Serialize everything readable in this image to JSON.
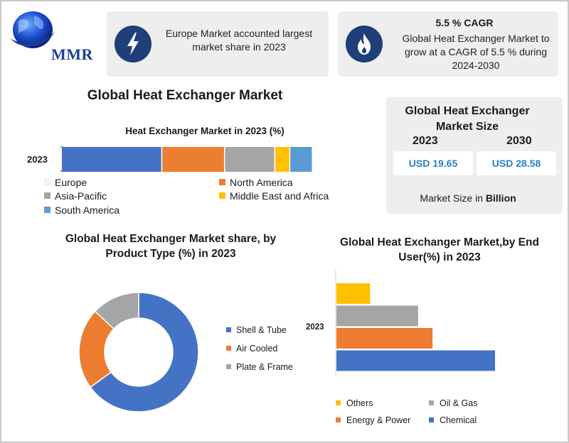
{
  "brand": {
    "logo_text": "MMR"
  },
  "info_cards": [
    {
      "icon": "lightning-bolt-icon",
      "text": "Europe Market accounted largest market share in 2023"
    },
    {
      "icon": "flame-icon",
      "title": "5.5 % CAGR",
      "text": "Global Heat Exchanger Market to grow at a CAGR of 5.5 % during 2024-2030"
    }
  ],
  "main_title": "Global Heat Exchanger Market",
  "market_size": {
    "title": "Global Heat Exchanger Market Size",
    "years": [
      "2023",
      "2030"
    ],
    "values": [
      "USD 19.65",
      "USD 28.58"
    ],
    "note_prefix": "Market Size in ",
    "note_unit": "Billion"
  },
  "colors": {
    "blue": "#4472c4",
    "orange": "#ed7d31",
    "gray": "#a5a5a5",
    "yellow": "#ffc000",
    "light_blue": "#5b9bd5"
  },
  "chart_data": [
    {
      "type": "bar",
      "orientation": "horizontal-stacked",
      "title": "Heat Exchanger Market in 2023 (%)",
      "categories": [
        "2023"
      ],
      "series": [
        {
          "name": "Europe",
          "values": [
            40
          ],
          "color": "#4472c4"
        },
        {
          "name": "North America",
          "values": [
            25
          ],
          "color": "#ed7d31"
        },
        {
          "name": "Asia-Pacific",
          "values": [
            20
          ],
          "color": "#a5a5a5"
        },
        {
          "name": "Middle East and Africa",
          "values": [
            6
          ],
          "color": "#ffc000"
        },
        {
          "name": "South America",
          "values": [
            9
          ],
          "color": "#5b9bd5"
        }
      ],
      "legend_order": [
        "Europe",
        "North America",
        "Asia-Pacific",
        "Middle East and Africa",
        "South America"
      ]
    },
    {
      "type": "pie",
      "variant": "donut",
      "title": "Global Heat Exchanger Market share, by Product Type (%) in 2023",
      "labels": [
        "Shell & Tube",
        "Air Cooled",
        "Plate & Frame"
      ],
      "values": [
        65,
        22,
        13
      ],
      "colors": [
        "#4472c4",
        "#ed7d31",
        "#a5a5a5"
      ]
    },
    {
      "type": "bar",
      "orientation": "horizontal",
      "title": "Global Heat Exchanger Market,by End User(%) in 2023",
      "categories": [
        "2023"
      ],
      "series": [
        {
          "name": "Chemical",
          "values": [
            33
          ],
          "color": "#4472c4"
        },
        {
          "name": "Energy & Power",
          "values": [
            20
          ],
          "color": "#ed7d31"
        },
        {
          "name": "Oil & Gas",
          "values": [
            17
          ],
          "color": "#a5a5a5"
        },
        {
          "name": "Others",
          "values": [
            7
          ],
          "color": "#ffc000"
        }
      ],
      "legend_order": [
        "Others",
        "Oil & Gas",
        "Energy & Power",
        "Chemical"
      ]
    }
  ]
}
